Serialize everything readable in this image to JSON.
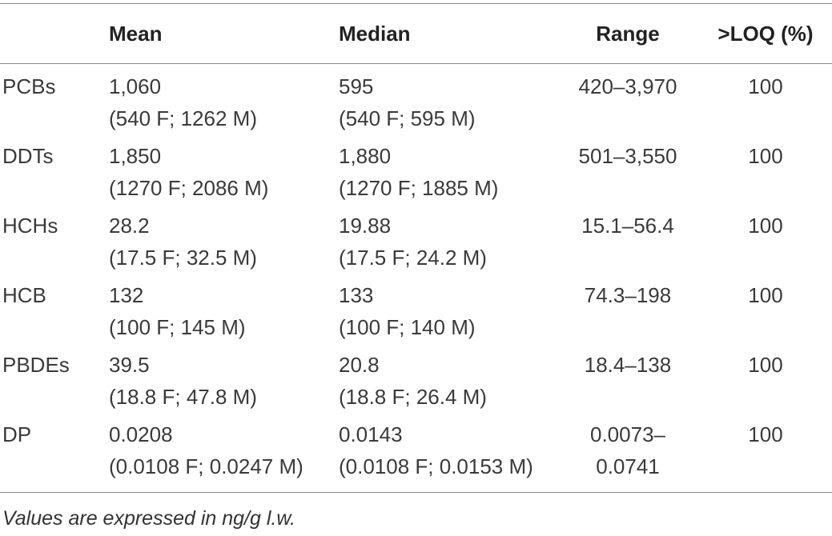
{
  "table": {
    "headers": {
      "name": "",
      "mean": "Mean",
      "median": "Median",
      "range": "Range",
      "loq": ">LOQ (%)"
    },
    "rows": [
      {
        "name": "PCBs",
        "mean": "1,060",
        "mean_detail": "(540 F; 1262 M)",
        "median": "595",
        "median_detail": "(540 F; 595 M)",
        "range": "420–3,970",
        "range_cont": "",
        "loq": "100"
      },
      {
        "name": "DDTs",
        "mean": "1,850",
        "mean_detail": "(1270 F; 2086 M)",
        "median": "1,880",
        "median_detail": "(1270 F; 1885 M)",
        "range": "501–3,550",
        "range_cont": "",
        "loq": "100"
      },
      {
        "name": "HCHs",
        "mean": "28.2",
        "mean_detail": "(17.5 F; 32.5 M)",
        "median": "19.88",
        "median_detail": "(17.5 F; 24.2 M)",
        "range": "15.1–56.4",
        "range_cont": "",
        "loq": "100"
      },
      {
        "name": "HCB",
        "mean": "132",
        "mean_detail": "(100 F; 145 M)",
        "median": "133",
        "median_detail": "(100 F; 140 M)",
        "range": "74.3–198",
        "range_cont": "",
        "loq": "100"
      },
      {
        "name": "PBDEs",
        "mean": "39.5",
        "mean_detail": "(18.8 F; 47.8 M)",
        "median": "20.8",
        "median_detail": "(18.8 F; 26.4 M)",
        "range": "18.4–138",
        "range_cont": "",
        "loq": "100"
      },
      {
        "name": "DP",
        "mean": "0.0208",
        "mean_detail": "(0.0108 F; 0.0247 M)",
        "median": "0.0143",
        "median_detail": "(0.0108 F; 0.0153 M)",
        "range": "0.0073–",
        "range_cont": "0.0741",
        "loq": "100"
      }
    ]
  },
  "footnote": "Values are expressed in ng/g l.w.",
  "colors": {
    "rule": "#8a8a8a",
    "text": "#3a3a3a",
    "header_text": "#222222"
  }
}
